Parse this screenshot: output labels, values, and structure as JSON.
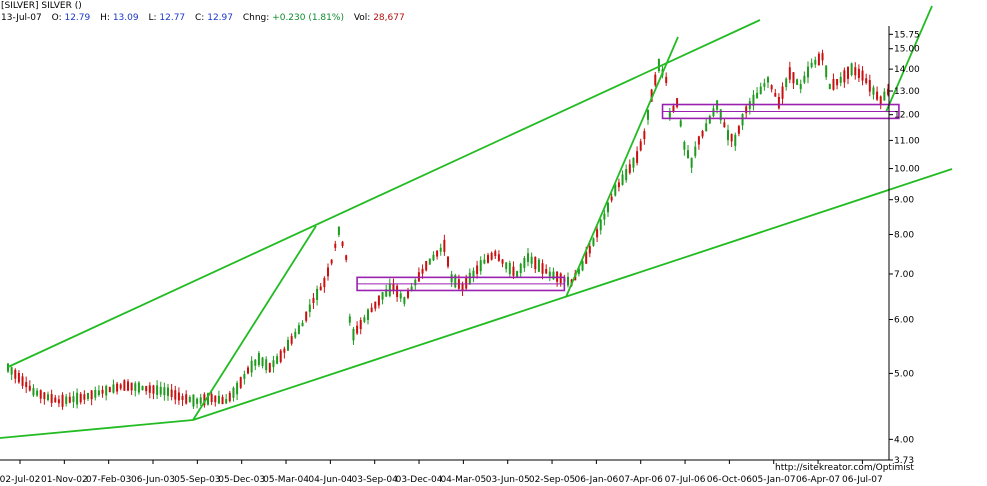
{
  "header": {
    "symbol_line": "[SILVER] SILVER ()",
    "date": "13-Jul-07",
    "open_label": "O:",
    "open": "12.79",
    "high_label": "H:",
    "high": "13.09",
    "low_label": "L:",
    "low": "12.77",
    "close_label": "C:",
    "close": "12.97",
    "change_label": "Chng:",
    "change": "+0.230 (1.81%)",
    "volume_label": "Vol:",
    "volume": "28,677"
  },
  "credit": "http://sitekreator.com/Optimist",
  "colors": {
    "up_candle": "#1f9b1f",
    "down_candle": "#c81010",
    "trendline": "#22bb22",
    "box": "#9a20b0",
    "axis": "#000000"
  },
  "chart_data": {
    "type": "candlestick",
    "y_scale": "log",
    "y_range": [
      3.73,
      16.2
    ],
    "y_ticks": [
      "15.75",
      "15.00",
      "14.00",
      "13.00",
      "12.00",
      "11.00",
      "10.00",
      "9.00",
      "8.00",
      "7.00",
      "6.00",
      "5.00",
      "4.00",
      "3.73"
    ],
    "x_ticks": [
      "02-Jul-02",
      "01-Nov-02",
      "07-Feb-03",
      "06-Jun-03",
      "05-Sep-03",
      "05-Dec-03",
      "05-Mar-04",
      "04-Jun-04",
      "03-Sep-04",
      "03-Dec-04",
      "04-Mar-05",
      "03-Jun-05",
      "02-Sep-05",
      "06-Jan-06",
      "07-Apr-06",
      "07-Jul-06",
      "06-Oct-06",
      "05-Jan-07",
      "06-Apr-07",
      "06-Jul-07"
    ],
    "price_path": [
      [
        0,
        5.1
      ],
      [
        7,
        4.7
      ],
      [
        14,
        4.55
      ],
      [
        20,
        4.6
      ],
      [
        26,
        4.7
      ],
      [
        32,
        4.8
      ],
      [
        38,
        4.75
      ],
      [
        44,
        4.7
      ],
      [
        48,
        4.6
      ],
      [
        52,
        4.55
      ],
      [
        56,
        4.6
      ],
      [
        60,
        4.55
      ],
      [
        63,
        4.75
      ],
      [
        66,
        5.05
      ],
      [
        69,
        5.25
      ],
      [
        72,
        5.1
      ],
      [
        75,
        5.3
      ],
      [
        78,
        5.6
      ],
      [
        81,
        5.9
      ],
      [
        84,
        6.4
      ],
      [
        87,
        6.8
      ],
      [
        89,
        7.3
      ],
      [
        91,
        8.1
      ],
      [
        93,
        7.4
      ],
      [
        94,
        6.0
      ],
      [
        95,
        5.7
      ],
      [
        97,
        5.9
      ],
      [
        100,
        6.2
      ],
      [
        103,
        6.5
      ],
      [
        106,
        6.7
      ],
      [
        109,
        6.4
      ],
      [
        112,
        6.8
      ],
      [
        115,
        7.2
      ],
      [
        118,
        7.5
      ],
      [
        120,
        7.7
      ],
      [
        122,
        6.9
      ],
      [
        125,
        6.7
      ],
      [
        128,
        7.0
      ],
      [
        131,
        7.3
      ],
      [
        134,
        7.5
      ],
      [
        137,
        7.2
      ],
      [
        140,
        7.0
      ],
      [
        143,
        7.4
      ],
      [
        146,
        7.2
      ],
      [
        149,
        7.0
      ],
      [
        152,
        6.9
      ],
      [
        155,
        6.8
      ],
      [
        158,
        7.2
      ],
      [
        161,
        7.8
      ],
      [
        164,
        8.5
      ],
      [
        167,
        9.3
      ],
      [
        170,
        9.8
      ],
      [
        173,
        10.4
      ],
      [
        175,
        11.2
      ],
      [
        177,
        12.8
      ],
      [
        179,
        14.2
      ],
      [
        181,
        13.5
      ],
      [
        182,
        12.0
      ],
      [
        184,
        12.5
      ],
      [
        186,
        10.8
      ],
      [
        188,
        10.2
      ],
      [
        190,
        11.0
      ],
      [
        192,
        11.5
      ],
      [
        195,
        12.4
      ],
      [
        198,
        11.2
      ],
      [
        200,
        11.0
      ],
      [
        203,
        12.2
      ],
      [
        206,
        12.8
      ],
      [
        209,
        13.5
      ],
      [
        212,
        12.5
      ],
      [
        215,
        13.8
      ],
      [
        218,
        13.2
      ],
      [
        221,
        14.2
      ],
      [
        224,
        14.6
      ],
      [
        226,
        13.2
      ],
      [
        229,
        13.5
      ],
      [
        232,
        14.0
      ],
      [
        235,
        13.7
      ],
      [
        238,
        13.0
      ],
      [
        240,
        12.6
      ],
      [
        242,
        12.97
      ]
    ],
    "trendlines": [
      {
        "from": [
          0,
          5.2
        ],
        "to": [
          "end-of-axis",
          14.8
        ]
      },
      {
        "from": [
          0,
          4.3
        ],
        "to": [
          60,
          4.45
        ]
      },
      {
        "from": [
          60,
          4.45
        ],
        "to": [
          "beyond",
          9.5
        ]
      },
      {
        "from": [
          60,
          4.6
        ],
        "to": [
          93,
          8.5
        ]
      },
      {
        "from": [
          154,
          6.65
        ],
        "to": [
          182,
          15.3
        ]
      },
      {
        "from": [
          230,
          12.0
        ],
        "to": [
          "beyond",
          18.0
        ]
      }
    ],
    "boxes": [
      {
        "x_from": 96,
        "x_to": 153,
        "y_low": 6.62,
        "y_high": 6.92
      },
      {
        "x_from": 180,
        "x_to": 245,
        "y_low": 11.85,
        "y_high": 12.42
      }
    ]
  }
}
